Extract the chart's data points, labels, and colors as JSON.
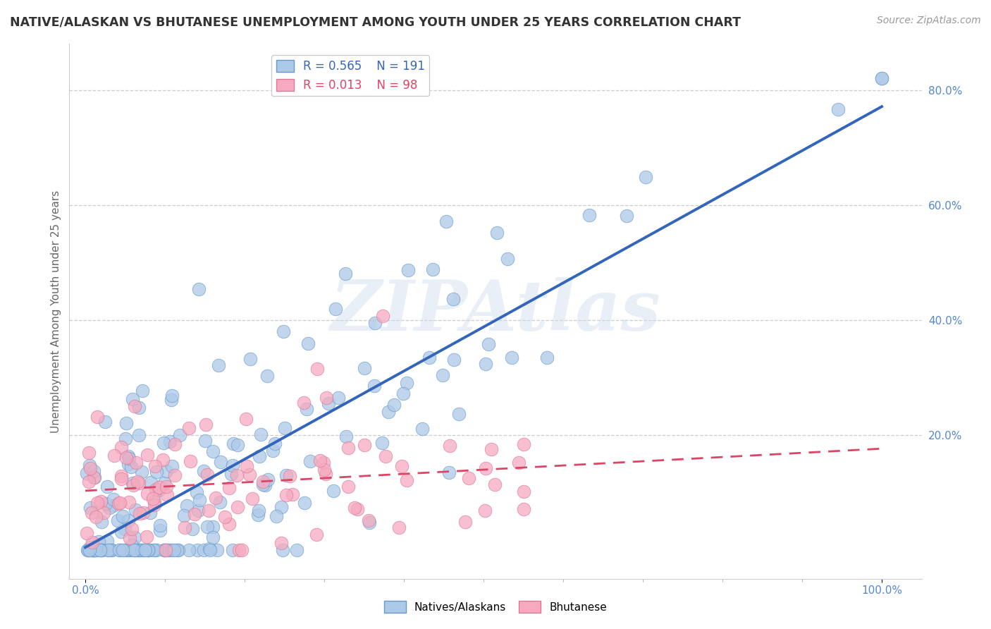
{
  "title": "NATIVE/ALASKAN VS BHUTANESE UNEMPLOYMENT AMONG YOUTH UNDER 25 YEARS CORRELATION CHART",
  "source": "Source: ZipAtlas.com",
  "ylabel": "Unemployment Among Youth under 25 years",
  "xlim": [
    -0.02,
    1.05
  ],
  "ylim": [
    -0.05,
    0.88
  ],
  "yticks": [
    0.2,
    0.4,
    0.6,
    0.8
  ],
  "ytick_labels": [
    "20.0%",
    "40.0%",
    "60.0%",
    "80.0%"
  ],
  "xtick_left": 0.0,
  "xtick_right": 1.0,
  "xtick_left_label": "0.0%",
  "xtick_right_label": "100.0%",
  "blue_R": 0.565,
  "blue_N": 191,
  "pink_R": 0.013,
  "pink_N": 98,
  "blue_color": "#adc9e8",
  "pink_color": "#f5aabf",
  "blue_edge_color": "#6699cc",
  "pink_edge_color": "#dd7799",
  "blue_line_color": "#3366bb",
  "pink_line_color": "#dd4466",
  "legend_label_blue": "Natives/Alaskans",
  "legend_label_pink": "Bhutanese",
  "watermark": "ZIPAtlas",
  "background_color": "#ffffff",
  "grid_color": "#cccccc",
  "title_color": "#333333",
  "axis_label_color": "#5588cc",
  "seed_blue": 77,
  "seed_pink": 55
}
